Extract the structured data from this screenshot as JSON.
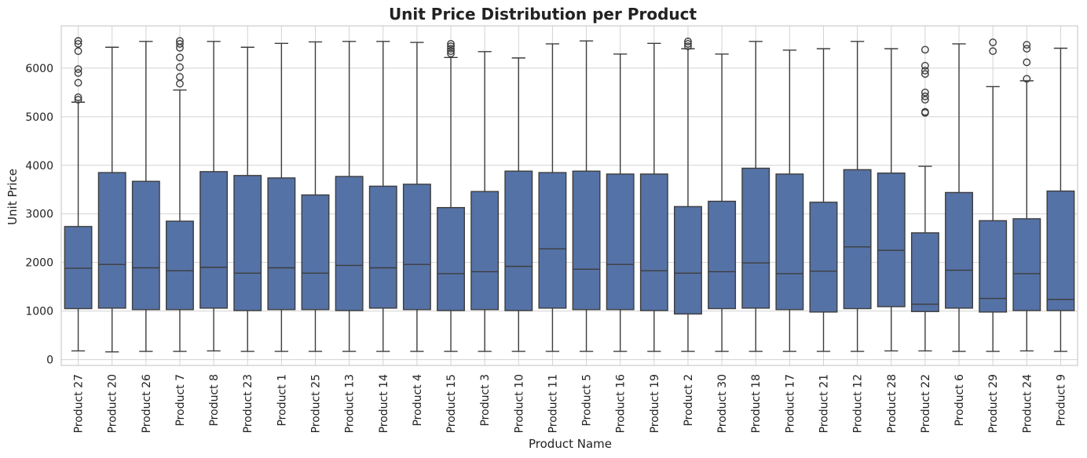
{
  "chart_data": {
    "type": "box",
    "title": "Unit Price Distribution per Product",
    "xlabel": "Product Name",
    "ylabel": "Unit Price",
    "ylim": [
      -120,
      6870
    ],
    "yticks": [
      0,
      1000,
      2000,
      3000,
      4000,
      5000,
      6000
    ],
    "grid": true,
    "legend": "none",
    "colors": {
      "box": "#5572a6",
      "line": "#3d3d3d",
      "grid": "#d3d3d3",
      "frame": "#cccccc"
    },
    "categories": [
      "Product 27",
      "Product 20",
      "Product 26",
      "Product 7",
      "Product 8",
      "Product 23",
      "Product 1",
      "Product 25",
      "Product 13",
      "Product 14",
      "Product 4",
      "Product 15",
      "Product 3",
      "Product 10",
      "Product 11",
      "Product 5",
      "Product 16",
      "Product 19",
      "Product 2",
      "Product 30",
      "Product 18",
      "Product 17",
      "Product 21",
      "Product 12",
      "Product 28",
      "Product 22",
      "Product 6",
      "Product 29",
      "Product 24",
      "Product 9"
    ],
    "boxes": [
      {
        "whislo": 180,
        "q1": 1050,
        "med": 1880,
        "q3": 2740,
        "whishi": 5300,
        "fliers": [
          5350,
          5400,
          5700,
          5900,
          5980,
          6350,
          6500,
          6560
        ]
      },
      {
        "whislo": 160,
        "q1": 1060,
        "med": 1960,
        "q3": 3850,
        "whishi": 6430,
        "fliers": []
      },
      {
        "whislo": 170,
        "q1": 1030,
        "med": 1890,
        "q3": 3670,
        "whishi": 6550,
        "fliers": []
      },
      {
        "whislo": 170,
        "q1": 1030,
        "med": 1830,
        "q3": 2850,
        "whishi": 5550,
        "fliers": [
          5680,
          5820,
          6020,
          6220,
          6420,
          6500,
          6560
        ]
      },
      {
        "whislo": 180,
        "q1": 1060,
        "med": 1900,
        "q3": 3870,
        "whishi": 6550,
        "fliers": []
      },
      {
        "whislo": 170,
        "q1": 1010,
        "med": 1780,
        "q3": 3790,
        "whishi": 6430,
        "fliers": []
      },
      {
        "whislo": 170,
        "q1": 1030,
        "med": 1890,
        "q3": 3740,
        "whishi": 6510,
        "fliers": []
      },
      {
        "whislo": 170,
        "q1": 1030,
        "med": 1780,
        "q3": 3390,
        "whishi": 6540,
        "fliers": []
      },
      {
        "whislo": 170,
        "q1": 1010,
        "med": 1940,
        "q3": 3770,
        "whishi": 6550,
        "fliers": []
      },
      {
        "whislo": 170,
        "q1": 1060,
        "med": 1890,
        "q3": 3570,
        "whishi": 6550,
        "fliers": []
      },
      {
        "whislo": 170,
        "q1": 1030,
        "med": 1960,
        "q3": 3610,
        "whishi": 6530,
        "fliers": []
      },
      {
        "whislo": 170,
        "q1": 1010,
        "med": 1770,
        "q3": 3130,
        "whishi": 6220,
        "fliers": [
          6300,
          6350,
          6400,
          6450,
          6500
        ]
      },
      {
        "whislo": 170,
        "q1": 1030,
        "med": 1810,
        "q3": 3460,
        "whishi": 6340,
        "fliers": []
      },
      {
        "whislo": 170,
        "q1": 1010,
        "med": 1920,
        "q3": 3880,
        "whishi": 6210,
        "fliers": []
      },
      {
        "whislo": 170,
        "q1": 1060,
        "med": 2280,
        "q3": 3850,
        "whishi": 6500,
        "fliers": []
      },
      {
        "whislo": 170,
        "q1": 1030,
        "med": 1860,
        "q3": 3880,
        "whishi": 6560,
        "fliers": []
      },
      {
        "whislo": 170,
        "q1": 1030,
        "med": 1960,
        "q3": 3820,
        "whishi": 6290,
        "fliers": []
      },
      {
        "whislo": 170,
        "q1": 1010,
        "med": 1830,
        "q3": 3820,
        "whishi": 6510,
        "fliers": []
      },
      {
        "whislo": 170,
        "q1": 940,
        "med": 1780,
        "q3": 3150,
        "whishi": 6400,
        "fliers": [
          6450,
          6500,
          6550
        ]
      },
      {
        "whislo": 170,
        "q1": 1050,
        "med": 1810,
        "q3": 3260,
        "whishi": 6290,
        "fliers": []
      },
      {
        "whislo": 170,
        "q1": 1060,
        "med": 1990,
        "q3": 3940,
        "whishi": 6550,
        "fliers": []
      },
      {
        "whislo": 170,
        "q1": 1030,
        "med": 1770,
        "q3": 3820,
        "whishi": 6370,
        "fliers": []
      },
      {
        "whislo": 170,
        "q1": 980,
        "med": 1820,
        "q3": 3240,
        "whishi": 6400,
        "fliers": []
      },
      {
        "whislo": 170,
        "q1": 1050,
        "med": 2320,
        "q3": 3910,
        "whishi": 6550,
        "fliers": []
      },
      {
        "whislo": 180,
        "q1": 1090,
        "med": 2250,
        "q3": 3840,
        "whishi": 6400,
        "fliers": []
      },
      {
        "whislo": 180,
        "q1": 990,
        "med": 1140,
        "q3": 2610,
        "whishi": 3980,
        "fliers": [
          5080,
          5100,
          5350,
          5420,
          5500,
          5880,
          5950,
          6050,
          6380
        ]
      },
      {
        "whislo": 170,
        "q1": 1060,
        "med": 1840,
        "q3": 3440,
        "whishi": 6500,
        "fliers": []
      },
      {
        "whislo": 170,
        "q1": 980,
        "med": 1260,
        "q3": 2860,
        "whishi": 5620,
        "fliers": [
          6350,
          6530
        ]
      },
      {
        "whislo": 180,
        "q1": 1010,
        "med": 1770,
        "q3": 2900,
        "whishi": 5740,
        "fliers": [
          5780,
          6120,
          6400,
          6480
        ]
      },
      {
        "whislo": 170,
        "q1": 1010,
        "med": 1240,
        "q3": 3470,
        "whishi": 6410,
        "fliers": []
      }
    ]
  }
}
